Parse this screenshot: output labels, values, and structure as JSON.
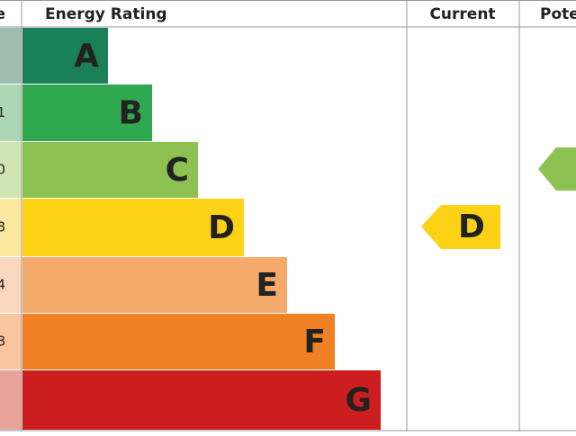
{
  "header": {
    "score": "e",
    "rating": "Energy Rating",
    "current": "Current",
    "potential": "Pote"
  },
  "bands": [
    {
      "letter": "A"
    },
    {
      "letter": "B",
      "range": "1"
    },
    {
      "letter": "C",
      "range": "0"
    },
    {
      "letter": "D",
      "range": "8"
    },
    {
      "letter": "E",
      "range": "4"
    },
    {
      "letter": "F",
      "range": "8"
    },
    {
      "letter": "G"
    }
  ],
  "current": {
    "letter": "D"
  }
}
